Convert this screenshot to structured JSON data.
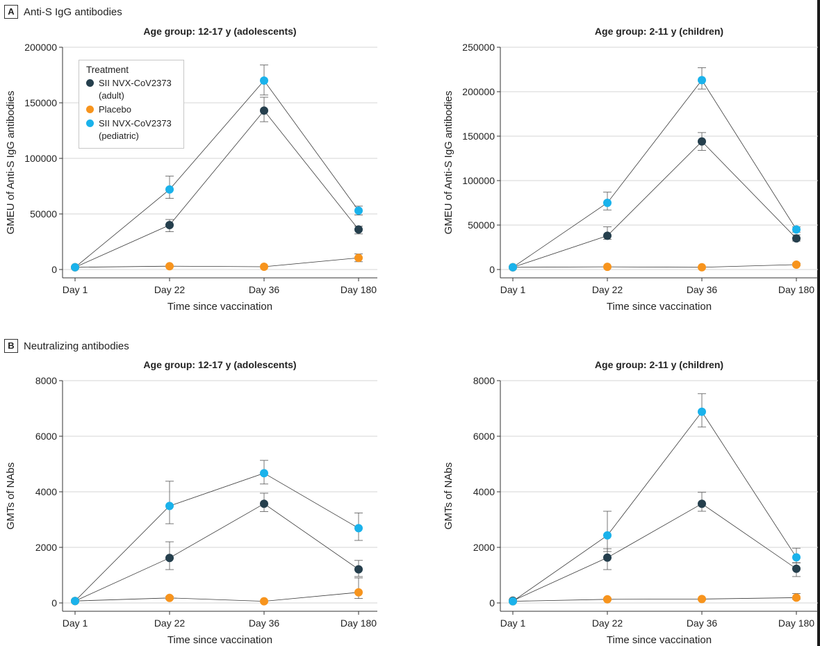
{
  "panels": {
    "A": {
      "letter": "A",
      "title": "Anti-S IgG antibodies"
    },
    "B": {
      "letter": "B",
      "title": "Neutralizing antibodies"
    }
  },
  "legend": {
    "title": "Treatment",
    "items": [
      {
        "label": "SII NVX-CoV2373 (adult)",
        "color": "#253f4d"
      },
      {
        "label": "Placebo",
        "color": "#f7941d"
      },
      {
        "label": "SII NVX-CoV2373 (pediatric)",
        "color": "#1ab2eb"
      }
    ]
  },
  "chart_data": [
    {
      "type": "line",
      "title": "Age group: 12-17 y (adolescents)",
      "xlabel": "Time since vaccination",
      "ylabel": "GMEU of Anti-S IgG antibodies",
      "categories": [
        "Day 1",
        "Day 22",
        "Day 36",
        "Day 180"
      ],
      "ylim": [
        0,
        200000
      ],
      "yticks": [
        0,
        50000,
        100000,
        150000,
        200000
      ],
      "ytick_labels": [
        "0",
        "50000",
        "100000",
        "150000",
        "200000"
      ],
      "grid": true,
      "series": [
        {
          "name": "SII NVX-CoV2373 (adult)",
          "color": "#253f4d",
          "values": [
            2000,
            40000,
            143000,
            36000
          ],
          "err_low": [
            1500,
            34000,
            133000,
            32000
          ],
          "err_high": [
            2500,
            45000,
            155000,
            39000
          ]
        },
        {
          "name": "Placebo",
          "color": "#f7941d",
          "values": [
            2000,
            3000,
            2500,
            10500
          ],
          "err_low": [
            1500,
            2500,
            2000,
            7000
          ],
          "err_high": [
            2500,
            3500,
            3000,
            14000
          ]
        },
        {
          "name": "SII NVX-CoV2373 (pediatric)",
          "color": "#1ab2eb",
          "values": [
            2000,
            72000,
            170000,
            53000
          ],
          "err_low": [
            1500,
            64000,
            157000,
            49000
          ],
          "err_high": [
            2500,
            84000,
            184000,
            57000
          ]
        }
      ]
    },
    {
      "type": "line",
      "title": "Age group: 2-11 y (children)",
      "xlabel": "Time since vaccination",
      "ylabel": "GMEU of Anti-S IgG antibodies",
      "categories": [
        "Day 1",
        "Day 22",
        "Day 36",
        "Day 180"
      ],
      "ylim": [
        0,
        250000
      ],
      "yticks": [
        0,
        50000,
        100000,
        150000,
        200000,
        250000
      ],
      "ytick_labels": [
        "0",
        "50000",
        "100000",
        "150000",
        "200000",
        "250000"
      ],
      "grid": true,
      "series": [
        {
          "name": "SII NVX-CoV2373 (adult)",
          "color": "#253f4d",
          "values": [
            2500,
            38000,
            144000,
            35000
          ],
          "err_low": [
            2000,
            34000,
            134000,
            32000
          ],
          "err_high": [
            3000,
            48000,
            154000,
            39000
          ]
        },
        {
          "name": "Placebo",
          "color": "#f7941d",
          "values": [
            2500,
            3000,
            2500,
            5500
          ],
          "err_low": [
            2000,
            2500,
            2000,
            4500
          ],
          "err_high": [
            3000,
            3500,
            3000,
            7000
          ]
        },
        {
          "name": "SII NVX-CoV2373 (pediatric)",
          "color": "#1ab2eb",
          "values": [
            2500,
            75000,
            213000,
            45000
          ],
          "err_low": [
            2000,
            67000,
            203000,
            42000
          ],
          "err_high": [
            3000,
            87000,
            227000,
            48000
          ]
        }
      ]
    },
    {
      "type": "line",
      "title": "Age group: 12-17 y (adolescents)",
      "xlabel": "Time since vaccination",
      "ylabel": "GMTs of NAbs",
      "categories": [
        "Day 1",
        "Day 22",
        "Day 36",
        "Day 180"
      ],
      "ylim": [
        0,
        8000
      ],
      "yticks": [
        0,
        2000,
        4000,
        6000,
        8000
      ],
      "ytick_labels": [
        "0",
        "2000",
        "4000",
        "6000",
        "8000"
      ],
      "grid": true,
      "series": [
        {
          "name": "SII NVX-CoV2373 (adult)",
          "color": "#253f4d",
          "values": [
            70,
            1620,
            3570,
            1210
          ],
          "err_low": [
            50,
            1200,
            3290,
            950
          ],
          "err_high": [
            90,
            2200,
            3950,
            1530
          ]
        },
        {
          "name": "Placebo",
          "color": "#f7941d",
          "values": [
            70,
            180,
            60,
            380
          ],
          "err_low": [
            50,
            140,
            40,
            160
          ],
          "err_high": [
            90,
            230,
            80,
            900
          ]
        },
        {
          "name": "SII NVX-CoV2373 (pediatric)",
          "color": "#1ab2eb",
          "values": [
            70,
            3490,
            4670,
            2690
          ],
          "err_low": [
            50,
            2850,
            4280,
            2250
          ],
          "err_high": [
            90,
            4380,
            5130,
            3240
          ]
        }
      ]
    },
    {
      "type": "line",
      "title": "Age group: 2-11 y (children)",
      "xlabel": "Time since vaccination",
      "ylabel": "GMTs of NAbs",
      "categories": [
        "Day 1",
        "Day 22",
        "Day 36",
        "Day 180"
      ],
      "ylim": [
        0,
        8000
      ],
      "yticks": [
        0,
        2000,
        4000,
        6000,
        8000
      ],
      "ytick_labels": [
        "0",
        "2000",
        "4000",
        "6000",
        "8000"
      ],
      "grid": true,
      "series": [
        {
          "name": "SII NVX-CoV2373 (adult)",
          "color": "#253f4d",
          "values": [
            80,
            1630,
            3570,
            1230
          ],
          "err_low": [
            60,
            1200,
            3300,
            950
          ],
          "err_high": [
            100,
            1950,
            3980,
            1450
          ]
        },
        {
          "name": "Placebo",
          "color": "#f7941d",
          "values": [
            60,
            130,
            140,
            190
          ],
          "err_low": [
            40,
            100,
            110,
            130
          ],
          "err_high": [
            80,
            170,
            170,
            340
          ]
        },
        {
          "name": "SII NVX-CoV2373 (pediatric)",
          "color": "#1ab2eb",
          "values": [
            60,
            2430,
            6880,
            1640
          ],
          "err_low": [
            40,
            1850,
            6330,
            1440
          ],
          "err_high": [
            80,
            3300,
            7530,
            1970
          ]
        }
      ]
    }
  ]
}
